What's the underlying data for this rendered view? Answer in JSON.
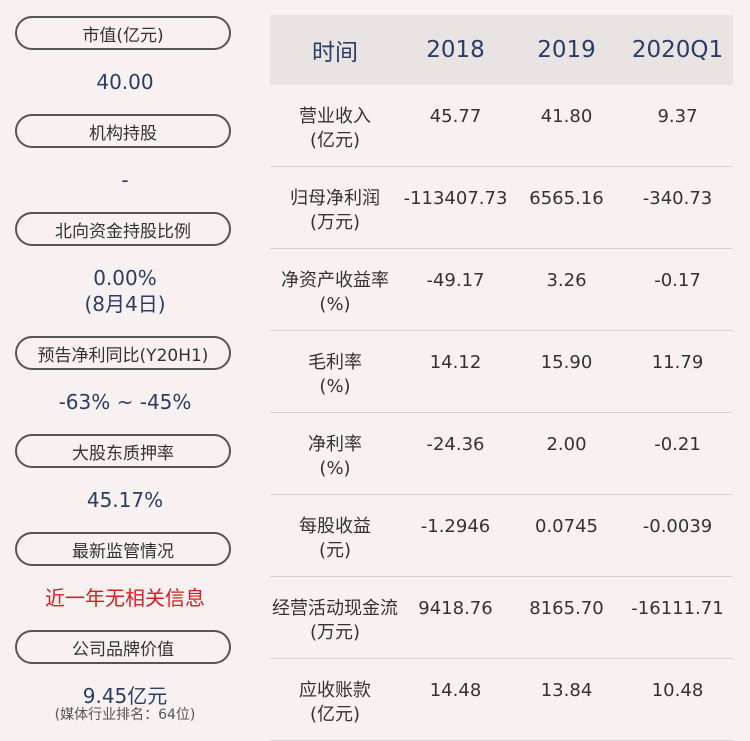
{
  "left": [
    {
      "label": "市值(亿元)",
      "value": "40.00"
    },
    {
      "label": "机构持股",
      "value": "-"
    },
    {
      "label": "北向资金持股比例",
      "value": "0.00%",
      "value2": "(8月4日)"
    },
    {
      "label": "预告净利同比(Y20H1)",
      "value": "-63% ~ -45%"
    },
    {
      "label": "大股东质押率",
      "value": "45.17%"
    },
    {
      "label": "最新监管情况",
      "value": "近一年无相关信息"
    },
    {
      "label": "公司品牌价值",
      "value": "9.45亿元",
      "note": "(媒体行业排名：64位)"
    }
  ],
  "table": {
    "headers": [
      "时间",
      "2018",
      "2019",
      "2020Q1"
    ],
    "rows": [
      {
        "name": "营业收入",
        "unit": "(亿元)",
        "v": [
          "45.77",
          "41.80",
          "9.37"
        ]
      },
      {
        "name": "归母净利润",
        "unit": "(万元)",
        "v": [
          "-113407.73",
          "6565.16",
          "-340.73"
        ]
      },
      {
        "name": "净资产收益率",
        "unit": "(%)",
        "v": [
          "-49.17",
          "3.26",
          "-0.17"
        ]
      },
      {
        "name": "毛利率",
        "unit": "(%)",
        "v": [
          "14.12",
          "15.90",
          "11.79"
        ]
      },
      {
        "name": "净利率",
        "unit": "(%)",
        "v": [
          "-24.36",
          "2.00",
          "-0.21"
        ]
      },
      {
        "name": "每股收益",
        "unit": "(元)",
        "v": [
          "-1.2946",
          "0.0745",
          "-0.0039"
        ]
      },
      {
        "name": "经营活动现金流",
        "unit": "(万元)",
        "v": [
          "9418.76",
          "8165.70",
          "-16111.71"
        ]
      },
      {
        "name": "应收账款",
        "unit": "(亿元)",
        "v": [
          "14.48",
          "13.84",
          "10.48"
        ]
      }
    ]
  }
}
